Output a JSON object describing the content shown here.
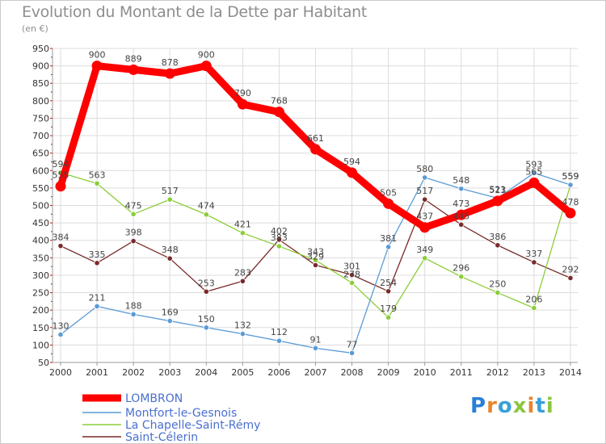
{
  "title": "Evolution du Montant de la Dette par Habitant",
  "subtitle": "(en €)",
  "logo_text": "Proxiti",
  "chart_data": {
    "type": "line",
    "categories": [
      "2000",
      "2001",
      "2002",
      "2003",
      "2004",
      "2005",
      "2006",
      "2007",
      "2008",
      "2009",
      "2010",
      "2011",
      "2012",
      "2013",
      "2014"
    ],
    "ylim": [
      50,
      950
    ],
    "yticks": [
      50,
      100,
      150,
      200,
      250,
      300,
      350,
      400,
      450,
      500,
      550,
      600,
      650,
      700,
      750,
      800,
      850,
      900,
      950
    ],
    "grid": true,
    "legend_position": "bottom-left",
    "series": [
      {
        "name": "LOMBRON",
        "color": "#ff0000",
        "values": [
          555,
          900,
          889,
          878,
          900,
          790,
          768,
          661,
          594,
          505,
          437,
          473,
          513,
          565,
          478
        ],
        "show_labels": true,
        "labels": [
          "555",
          "900",
          "889",
          "878",
          "900",
          "790",
          "768",
          "661",
          "594",
          "505",
          "437",
          "473",
          "513",
          "565",
          "478"
        ]
      },
      {
        "name": "Montfort-le-Gesnois",
        "color": "#5a9bd5",
        "values": [
          130,
          211,
          188,
          169,
          150,
          132,
          112,
          91,
          77,
          381,
          580,
          548,
          521,
          593,
          559
        ],
        "show_labels": true,
        "labels": [
          "130",
          "211",
          "188",
          "169",
          "150",
          "132",
          "112",
          "91",
          "77",
          "381",
          "580",
          "548",
          "521",
          "593",
          "559"
        ]
      },
      {
        "name": "La Chapelle-Saint-Rémy",
        "color": "#8ccd3a",
        "values": [
          594,
          563,
          475,
          517,
          474,
          421,
          383,
          343,
          278,
          179,
          349,
          296,
          250,
          206,
          559
        ],
        "show_labels": true,
        "labels": [
          "594",
          "563",
          "475",
          "517",
          "474",
          "421",
          "383",
          "343",
          "278",
          "179",
          "349",
          "296",
          "250",
          "206",
          "559"
        ]
      },
      {
        "name": "Saint-Célerin",
        "color": "#7a2a2a",
        "values": [
          384,
          335,
          398,
          348,
          253,
          283,
          402,
          329,
          301,
          254,
          517,
          445,
          386,
          337,
          292
        ],
        "show_labels": true,
        "labels": [
          "384",
          "335",
          "398",
          "348",
          "253",
          "283",
          "402",
          "329",
          "301",
          "254",
          "517",
          "445",
          "386",
          "337",
          "292"
        ]
      }
    ]
  }
}
